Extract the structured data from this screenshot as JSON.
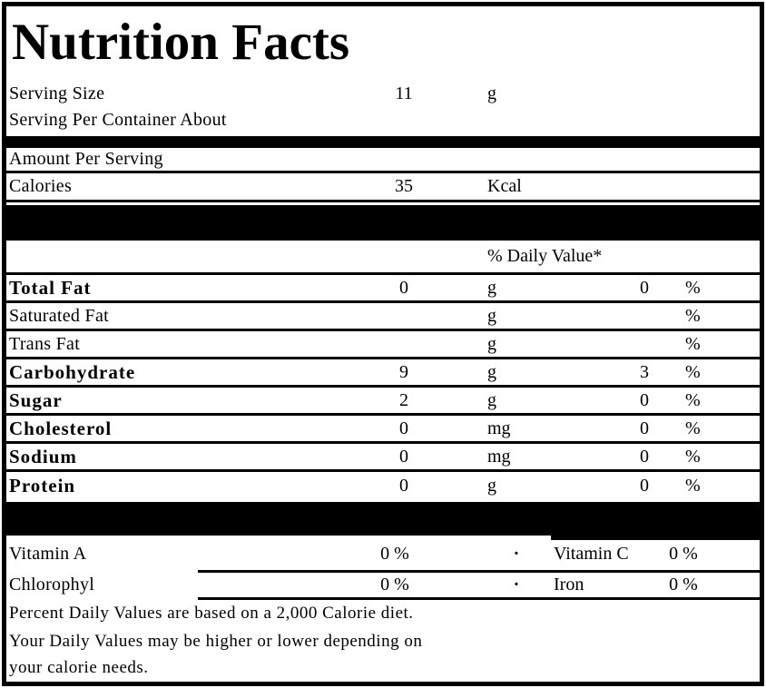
{
  "label": {
    "title": "Nutrition Facts",
    "serving": {
      "size_label": "Serving Size",
      "size_value": "11",
      "size_unit": "g",
      "per_container_label": "Serving Per Container About"
    },
    "amount_per_serving": "Amount Per Serving",
    "calories": {
      "label": "Calories",
      "value": "35",
      "unit": "Kcal"
    },
    "daily_value_header": "% Daily Value*",
    "nutrients": [
      {
        "name": "Total Fat",
        "value": "0",
        "unit": "g",
        "dv": "0",
        "pct": "%"
      },
      {
        "name": "Saturated Fat",
        "value": "",
        "unit": "g",
        "dv": "",
        "pct": "%"
      },
      {
        "name": "Trans Fat",
        "value": "",
        "unit": "g",
        "dv": "",
        "pct": "%"
      },
      {
        "name": "Carbohydrate",
        "value": "9",
        "unit": "g",
        "dv": "3",
        "pct": "%"
      },
      {
        "name": "Sugar",
        "value": "2",
        "unit": "g",
        "dv": "0",
        "pct": "%"
      },
      {
        "name": "Cholesterol",
        "value": "0",
        "unit": "mg",
        "dv": "0",
        "pct": "%"
      },
      {
        "name": "Sodium",
        "value": "0",
        "unit": "mg",
        "dv": "0",
        "pct": "%"
      },
      {
        "name": "Protein",
        "value": "0",
        "unit": "g",
        "dv": "0",
        "pct": "%"
      }
    ],
    "vitamins": [
      {
        "name": "Vitamin A",
        "value": "0 %",
        "separator": "·",
        "name2": "Vitamin C",
        "value2": "0 %"
      },
      {
        "name": "Chlorophyl",
        "value": "0 %",
        "separator": "·",
        "name2": "Iron",
        "value2": "0 %"
      }
    ],
    "footnote_lines": [
      "Percent Daily Values are based on a 2,000 Calorie diet.",
      "Your Daily Values may be higher or lower depending on",
      "your calorie needs."
    ]
  },
  "colors": {
    "ink": "#000000",
    "paper": "#ffffff"
  }
}
